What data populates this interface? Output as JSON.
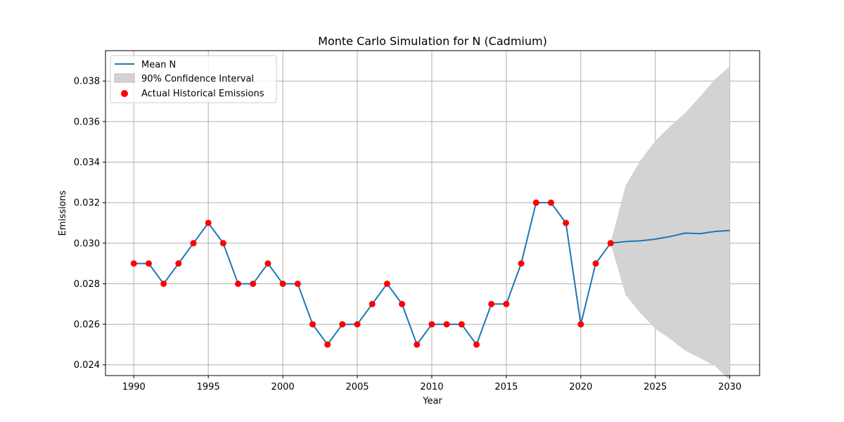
{
  "chart_data": {
    "type": "line",
    "title": "Monte Carlo Simulation for N (Cadmium)",
    "xlabel": "Year",
    "ylabel": "Emissions",
    "xlim": [
      1988.1,
      2032.0
    ],
    "ylim": [
      0.02347,
      0.0395
    ],
    "xticks": [
      1990,
      1995,
      2000,
      2005,
      2010,
      2015,
      2020,
      2025,
      2030
    ],
    "yticks": [
      0.024,
      0.026,
      0.028,
      0.03,
      0.032,
      0.034,
      0.036,
      0.038
    ],
    "ytick_labels": [
      "0.024",
      "0.026",
      "0.028",
      "0.030",
      "0.032",
      "0.034",
      "0.036",
      "0.038"
    ],
    "grid": true,
    "legend_position": "upper-left",
    "series": [
      {
        "name": "Mean N",
        "kind": "line",
        "color": "#1f77b4",
        "x": [
          1990,
          1991,
          1992,
          1993,
          1994,
          1995,
          1996,
          1997,
          1998,
          1999,
          2000,
          2001,
          2002,
          2003,
          2004,
          2005,
          2006,
          2007,
          2008,
          2009,
          2010,
          2011,
          2012,
          2013,
          2014,
          2015,
          2016,
          2017,
          2018,
          2019,
          2020,
          2021,
          2022,
          2023,
          2024,
          2025,
          2026,
          2027,
          2028,
          2029,
          2030
        ],
        "y": [
          0.029,
          0.029,
          0.028,
          0.029,
          0.03,
          0.031,
          0.03,
          0.028,
          0.028,
          0.029,
          0.028,
          0.028,
          0.026,
          0.025,
          0.026,
          0.026,
          0.027,
          0.028,
          0.027,
          0.025,
          0.026,
          0.026,
          0.026,
          0.025,
          0.027,
          0.027,
          0.029,
          0.032,
          0.032,
          0.031,
          0.026,
          0.029,
          0.03,
          0.03008,
          0.03012,
          0.0302,
          0.03033,
          0.0305,
          0.03047,
          0.03058,
          0.03063
        ]
      },
      {
        "name": "90% Confidence Interval",
        "kind": "band",
        "color": "#d3d3d3",
        "x": [
          2022,
          2023,
          2024,
          2025,
          2026,
          2027,
          2028,
          2029,
          2030
        ],
        "lower": [
          0.03,
          0.02745,
          0.02655,
          0.02578,
          0.02528,
          0.0247,
          0.02433,
          0.02395,
          0.02323
        ],
        "upper": [
          0.03,
          0.03283,
          0.03408,
          0.03505,
          0.03578,
          0.03642,
          0.03723,
          0.03808,
          0.03873
        ]
      },
      {
        "name": "Actual Historical Emissions",
        "kind": "scatter",
        "color": "#ff0000",
        "x": [
          1990,
          1991,
          1992,
          1993,
          1994,
          1995,
          1996,
          1997,
          1998,
          1999,
          2000,
          2001,
          2002,
          2003,
          2004,
          2005,
          2006,
          2007,
          2008,
          2009,
          2010,
          2011,
          2012,
          2013,
          2014,
          2015,
          2016,
          2017,
          2018,
          2019,
          2020,
          2021,
          2022
        ],
        "y": [
          0.029,
          0.029,
          0.028,
          0.029,
          0.03,
          0.031,
          0.03,
          0.028,
          0.028,
          0.029,
          0.028,
          0.028,
          0.026,
          0.025,
          0.026,
          0.026,
          0.027,
          0.028,
          0.027,
          0.025,
          0.026,
          0.026,
          0.026,
          0.025,
          0.027,
          0.027,
          0.029,
          0.032,
          0.032,
          0.031,
          0.026,
          0.029,
          0.03
        ]
      }
    ]
  }
}
